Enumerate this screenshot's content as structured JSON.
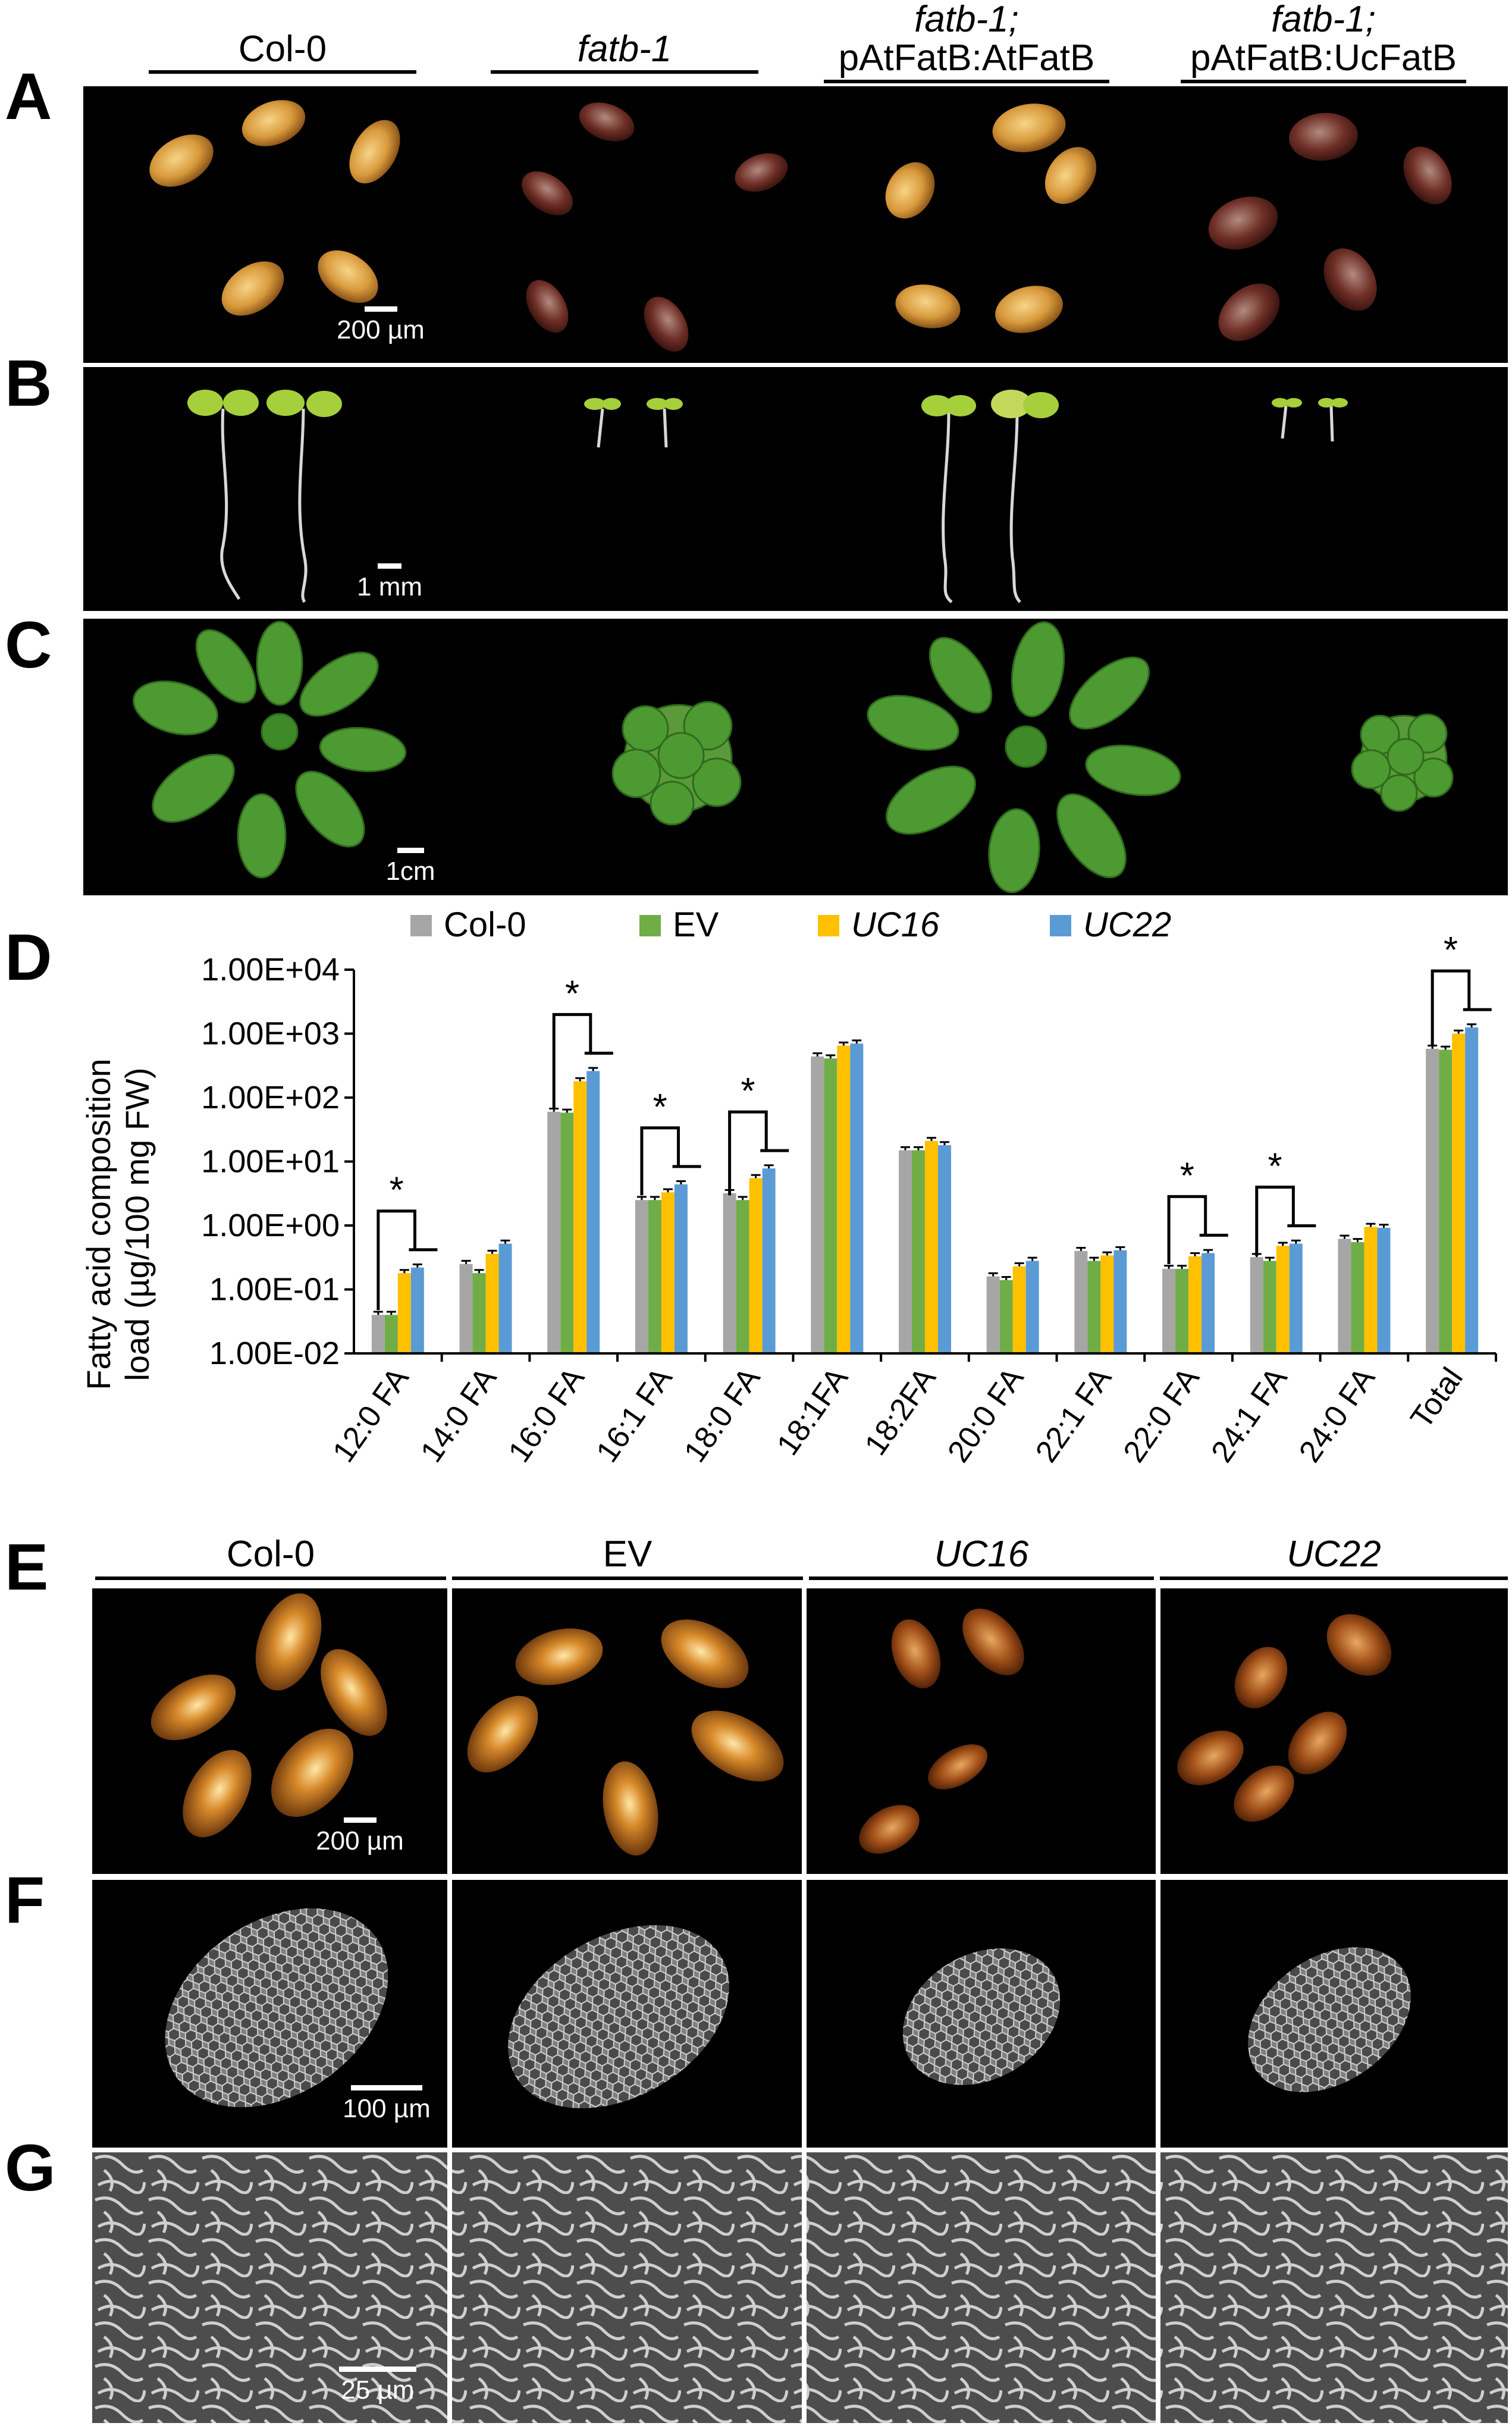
{
  "panels": {
    "a": "A",
    "b": "B",
    "c": "C",
    "d": "D",
    "e": "E",
    "f": "F",
    "g": "G"
  },
  "top_headers": [
    {
      "line1": "Col-0",
      "line2": ""
    },
    {
      "line1": "fatb-1",
      "line2": ""
    },
    {
      "line1": "fatb-1;",
      "line2": "pAtFatB:AtFatB"
    },
    {
      "line1": "fatb-1;",
      "line2": "pAtFatB:UcFatB"
    }
  ],
  "scale_bars": {
    "a": "200 µm",
    "b": "1 mm",
    "c": "1cm",
    "e": "200 µm",
    "f": "100 µm",
    "g": "25 µm"
  },
  "bottom_headers": [
    "Col-0",
    "EV",
    "UC16",
    "UC22"
  ],
  "chart_data": {
    "type": "bar",
    "ylabel_line1": "Fatty acid composition",
    "ylabel_line2": "load (µg/100 mg FW)",
    "yscale": "log",
    "ylim": [
      0.01,
      10000
    ],
    "y_ticks": [
      "1.00E-02",
      "1.00E-01",
      "1.00E+00",
      "1.00E+01",
      "1.00E+02",
      "1.00E+03",
      "1.00E+04"
    ],
    "legend_position": "top",
    "categories": [
      "12:0 FA",
      "14:0 FA",
      "16:0 FA",
      "16:1 FA",
      "18:0 FA",
      "18:1FA",
      "18:2FA",
      "20:0 FA",
      "22:1 FA",
      "22:0 FA",
      "24:1 FA",
      "24:0 FA",
      "Total"
    ],
    "series": [
      {
        "name": "Col-0",
        "color": "#a6a6a6",
        "values": [
          0.04,
          0.25,
          60,
          2.5,
          3.2,
          440,
          15,
          0.16,
          0.4,
          0.21,
          0.32,
          0.62,
          580
        ]
      },
      {
        "name": "EV",
        "color": "#70ad47",
        "values": [
          0.04,
          0.18,
          58,
          2.5,
          2.5,
          410,
          15,
          0.14,
          0.28,
          0.21,
          0.28,
          0.55,
          560
        ]
      },
      {
        "name": "UC16",
        "color": "#ffc000",
        "values": [
          0.18,
          0.36,
          180,
          3.3,
          5.5,
          650,
          21,
          0.23,
          0.34,
          0.33,
          0.48,
          0.95,
          1000
        ]
      },
      {
        "name": "UC22",
        "color": "#5b9bd5",
        "values": [
          0.22,
          0.52,
          260,
          4.4,
          7.8,
          700,
          18,
          0.28,
          0.41,
          0.37,
          0.52,
          0.92,
          1250
        ]
      }
    ],
    "significance": {
      "marker": "*",
      "categories": [
        "12:0 FA",
        "16:0 FA",
        "16:1 FA",
        "18:0 FA",
        "22:0 FA",
        "24:1 FA",
        "Total"
      ]
    }
  }
}
